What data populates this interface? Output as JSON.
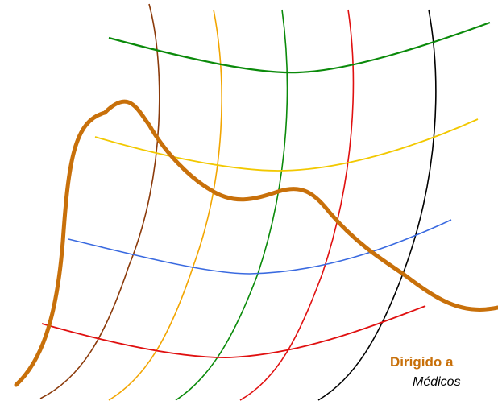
{
  "caption": {
    "title": "Dirigido a",
    "subtitle": "Médicos"
  },
  "colors": {
    "brown": "#8b3a0a",
    "orange": "#f2a500",
    "green": "#0a8a0a",
    "red": "#e01010",
    "black": "#000000",
    "yellow": "#f2c800",
    "blue": "#3a6ae0",
    "thick_curve": "#c8700a"
  },
  "curves": {
    "vertical": [
      "brown",
      "orange",
      "green",
      "red",
      "black"
    ],
    "horizontal": [
      "green",
      "yellow",
      "blue",
      "red"
    ],
    "highlight": "thick_curve"
  }
}
